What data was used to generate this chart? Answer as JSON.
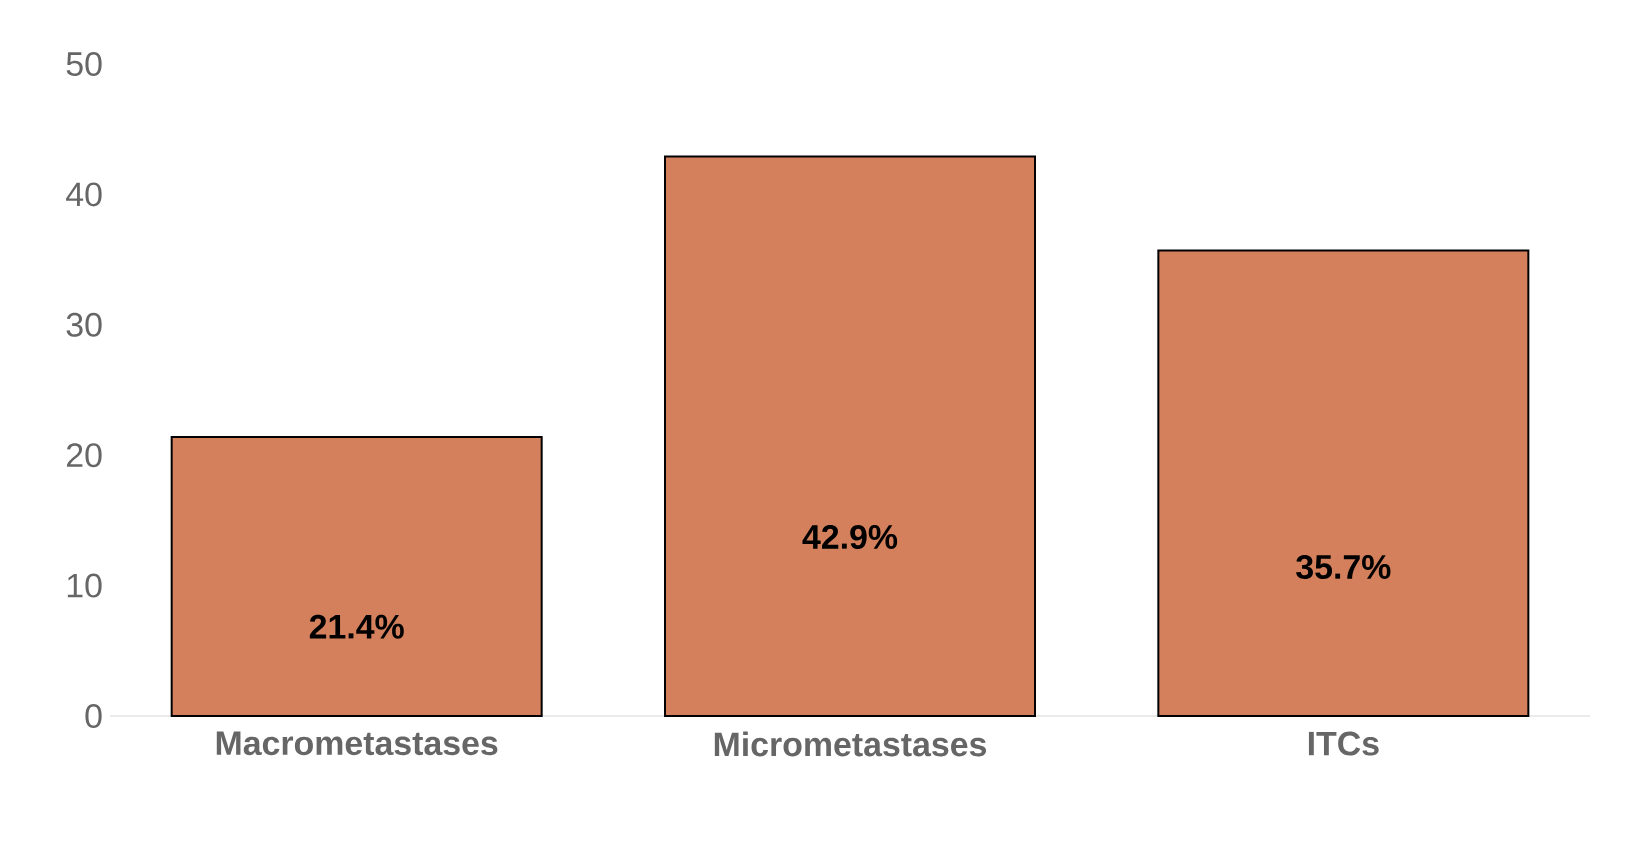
{
  "chart_data": {
    "type": "bar",
    "categories": [
      "Macrometastases",
      "Micrometastases",
      "ITCs"
    ],
    "values": [
      21.4,
      42.9,
      35.7
    ],
    "value_labels": [
      "21.4%",
      "42.9%",
      "35.7%"
    ],
    "color": "#d4805c",
    "ylim": [
      0,
      50
    ],
    "yticks": [
      0,
      10,
      20,
      30,
      40,
      50
    ]
  }
}
